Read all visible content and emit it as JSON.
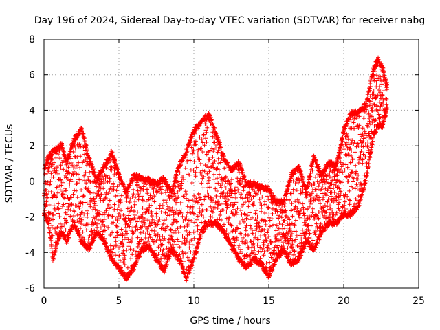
{
  "chart_data": {
    "type": "scatter",
    "title": "Day 196 of 2024, Sidereal Day-to-day VTEC variation (SDTVAR) for receiver nabg",
    "xlabel": "GPS time / hours",
    "ylabel": "SDTVAR / TECUs",
    "xlim": [
      0,
      25
    ],
    "ylim": [
      -6,
      8
    ],
    "xticks": [
      0,
      5,
      10,
      15,
      20,
      25
    ],
    "yticks": [
      -6,
      -4,
      -2,
      0,
      2,
      4,
      6,
      8
    ],
    "grid": true,
    "marker": "+",
    "color": "#ff0000",
    "series": [
      {
        "name": "SDTVAR",
        "envelope": {
          "x": [
            0.0,
            0.3,
            0.6,
            0.9,
            1.2,
            1.5,
            2.0,
            2.5,
            3.0,
            3.5,
            4.0,
            4.5,
            5.0,
            5.5,
            6.0,
            6.5,
            7.0,
            7.5,
            8.0,
            8.5,
            9.0,
            9.5,
            10.0,
            10.5,
            11.0,
            11.5,
            12.0,
            12.5,
            13.0,
            13.5,
            14.0,
            14.5,
            15.0,
            15.5,
            16.0,
            16.5,
            17.0,
            17.5,
            18.0,
            18.5,
            19.0,
            19.5,
            20.0,
            20.5,
            21.0,
            21.5,
            22.0,
            22.3,
            22.6,
            22.9
          ],
          "upper": [
            0.8,
            1.5,
            1.8,
            2.0,
            2.2,
            1.2,
            2.5,
            3.1,
            1.5,
            0.2,
            1.0,
            1.8,
            0.5,
            -0.5,
            0.5,
            0.3,
            0.2,
            0.0,
            0.3,
            -0.5,
            1.0,
            1.8,
            3.0,
            3.5,
            3.9,
            2.8,
            1.5,
            0.8,
            1.2,
            0.0,
            0.0,
            -0.2,
            -0.3,
            -1.0,
            -1.0,
            0.5,
            1.0,
            -0.5,
            1.5,
            0.5,
            1.2,
            1.0,
            3.0,
            4.0,
            4.0,
            4.5,
            6.5,
            7.0,
            6.5,
            5.5
          ],
          "lower": [
            -2.0,
            -2.5,
            -4.5,
            -3.5,
            -3.0,
            -3.5,
            -2.5,
            -3.5,
            -4.0,
            -3.0,
            -3.5,
            -4.5,
            -5.0,
            -5.6,
            -5.0,
            -4.0,
            -3.8,
            -4.5,
            -5.2,
            -4.0,
            -4.5,
            -5.6,
            -4.5,
            -3.0,
            -2.5,
            -2.5,
            -3.0,
            -3.8,
            -4.5,
            -5.0,
            -4.5,
            -4.8,
            -5.5,
            -4.5,
            -4.0,
            -4.8,
            -4.5,
            -3.5,
            -4.0,
            -3.0,
            -2.5,
            -2.5,
            -2.0,
            -2.0,
            -1.5,
            0.0,
            2.5,
            3.0,
            3.0,
            4.0
          ]
        }
      }
    ]
  }
}
